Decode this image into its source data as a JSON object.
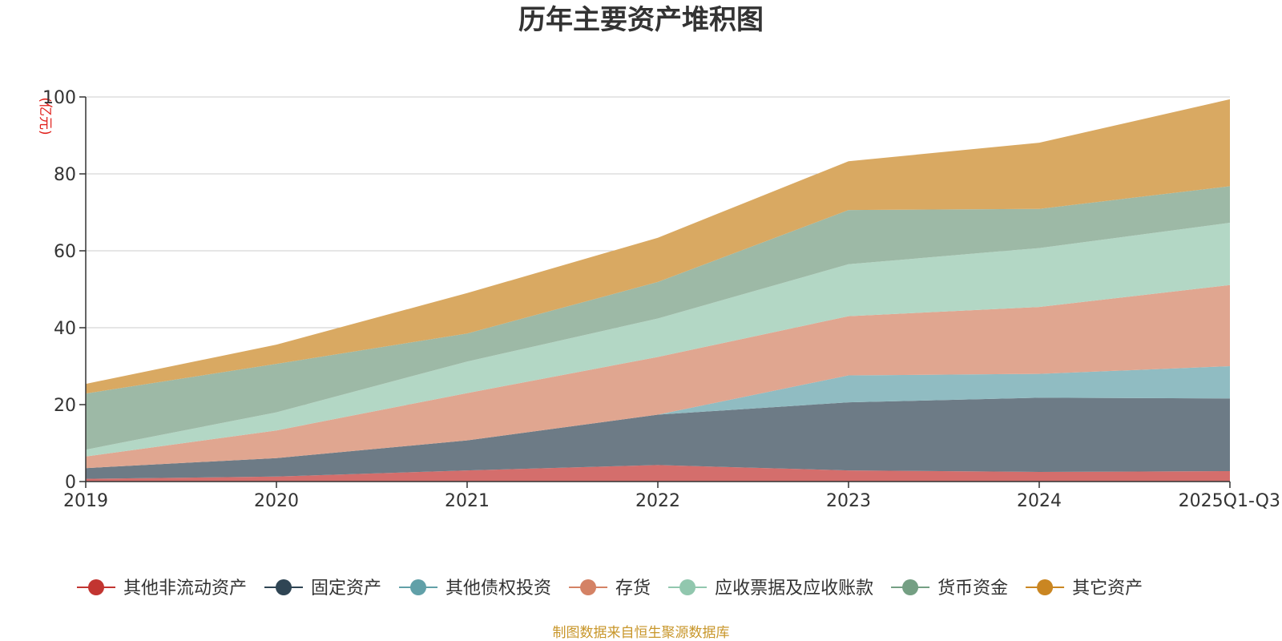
{
  "chart_data": {
    "type": "area",
    "stacked": true,
    "title": "历年主要资产堆积图",
    "unit_label": "(亿元)",
    "source": "制图数据来自恒生聚源数据库",
    "categories": [
      "2019",
      "2020",
      "2021",
      "2022",
      "2023",
      "2024",
      "2025Q1-Q3"
    ],
    "ylim": [
      0,
      100
    ],
    "yticks": [
      0,
      20,
      40,
      60,
      80,
      100
    ],
    "grid": true,
    "legend_position": "bottom",
    "series": [
      {
        "name": "其他非流动资产",
        "values": [
          0.7,
          1.3,
          2.9,
          4.3,
          2.9,
          2.5,
          2.7
        ],
        "color": "#c23531",
        "fill": "#d46e6c"
      },
      {
        "name": "固定资产",
        "values": [
          2.8,
          4.8,
          7.8,
          13.1,
          17.7,
          19.3,
          18.9
        ],
        "color": "#2f4554",
        "fill": "#6d7b86"
      },
      {
        "name": "其他债权投资",
        "values": [
          0.0,
          0.0,
          0.0,
          0.0,
          7.0,
          6.2,
          8.4
        ],
        "color": "#61a0a8",
        "fill": "#90bcc2"
      },
      {
        "name": "存货",
        "values": [
          3.0,
          7.2,
          12.3,
          15.0,
          15.4,
          17.4,
          21.1
        ],
        "color": "#d48265",
        "fill": "#e0a690"
      },
      {
        "name": "应收票据及应收账款",
        "values": [
          1.8,
          4.7,
          8.2,
          10.0,
          13.5,
          15.3,
          16.2
        ],
        "color": "#91c7ae",
        "fill": "#b3d7c5"
      },
      {
        "name": "货币资金",
        "values": [
          14.6,
          12.6,
          7.3,
          9.5,
          14.1,
          10.2,
          9.5
        ],
        "color": "#749f83",
        "fill": "#9db9a6"
      },
      {
        "name": "其它资产",
        "values": [
          2.5,
          5.0,
          10.5,
          11.5,
          12.7,
          17.2,
          22.6
        ],
        "color": "#ca8622",
        "fill": "#d9a962"
      }
    ]
  }
}
